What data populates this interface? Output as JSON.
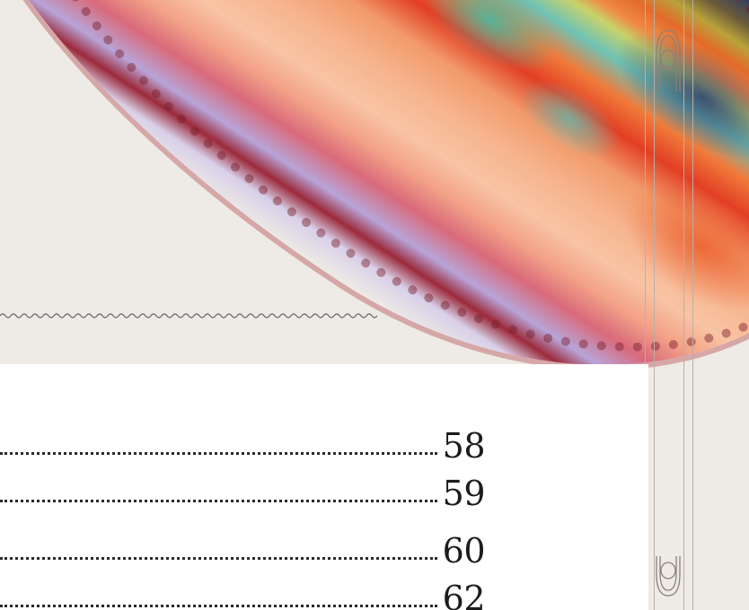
{
  "toc": {
    "entries": [
      {
        "page": "58"
      },
      {
        "page": "59"
      },
      {
        "page": "60"
      },
      {
        "page": "62"
      }
    ]
  }
}
